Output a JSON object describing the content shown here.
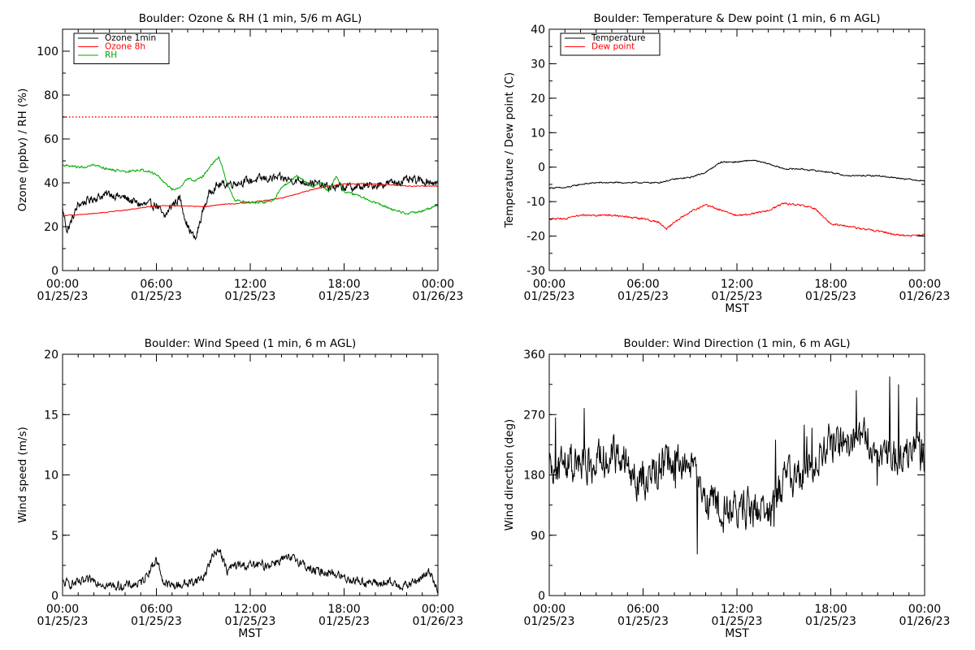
{
  "chart_data": [
    {
      "type": "line",
      "title": "Boulder: Ozone & RH (1 min, 5/6 m AGL)",
      "ylabel": "Ozone (ppbv) / RH (%)",
      "xlabel": "",
      "xlim": [
        "01/25/23 00:00",
        "01/26/23 00:00"
      ],
      "ylim": [
        0,
        110
      ],
      "yticks": [
        0,
        20,
        40,
        60,
        80,
        100
      ],
      "xticks": [
        {
          "time": "00:00",
          "date": "01/25/23"
        },
        {
          "time": "06:00",
          "date": "01/25/23"
        },
        {
          "time": "12:00",
          "date": "01/25/23"
        },
        {
          "time": "18:00",
          "date": "01/25/23"
        },
        {
          "time": "00:00",
          "date": "01/26/23"
        }
      ],
      "reference_line": {
        "y": 70,
        "color": "#ff0000",
        "style": "dotted"
      },
      "legend": {
        "position": "top-left",
        "entries": [
          "Ozone 1min",
          "Ozone 8h",
          "RH"
        ]
      },
      "series": [
        {
          "name": "Ozone 1min",
          "color": "#000000",
          "noise": 3,
          "hours": [
            0,
            0.3,
            1,
            2,
            3,
            4,
            5,
            6,
            6.5,
            7,
            7.5,
            8,
            8.5,
            9,
            9.5,
            10,
            11,
            12,
            13,
            14,
            15,
            16,
            17,
            18,
            19,
            20,
            21,
            22,
            23,
            24
          ],
          "values": [
            28,
            18,
            30,
            33,
            35,
            33,
            30,
            30,
            24,
            30,
            33,
            20,
            14,
            28,
            37,
            39,
            40,
            41,
            42,
            42,
            41,
            40,
            38,
            38,
            38,
            39,
            40,
            41,
            41,
            40
          ]
        },
        {
          "name": "Ozone 8h",
          "color": "#ff0000",
          "noise": 0.3,
          "hours": [
            0,
            2,
            4,
            6,
            8,
            9,
            10,
            12,
            14,
            16,
            17,
            18,
            20,
            22,
            24
          ],
          "values": [
            25,
            26,
            27.5,
            29.5,
            29.5,
            29,
            30,
            31,
            33,
            37,
            38.5,
            39.5,
            39.5,
            38.5,
            38.5
          ]
        },
        {
          "name": "RH",
          "color": "#00aa00",
          "noise": 0.8,
          "hours": [
            0,
            1,
            2,
            3,
            4,
            5,
            6,
            6.5,
            7,
            7.5,
            8,
            8.5,
            9,
            9.5,
            10,
            10.5,
            11,
            12,
            13,
            13.5,
            14,
            15,
            16,
            16.5,
            17,
            17.5,
            18,
            19,
            20,
            21,
            22,
            23,
            24
          ],
          "values": [
            48,
            47,
            48,
            46,
            45,
            46,
            44,
            40,
            37,
            38,
            42,
            41,
            43,
            48,
            52,
            40,
            32,
            31,
            31,
            32,
            38,
            43,
            38,
            40,
            36,
            43,
            36,
            34,
            31,
            28,
            26,
            27,
            30
          ]
        }
      ]
    },
    {
      "type": "line",
      "title": "Boulder: Temperature & Dew point (1 min, 6 m AGL)",
      "ylabel": "Temperature / Dew point (C)",
      "xlabel": "MST",
      "xlim": [
        "01/25/23 00:00",
        "01/26/23 00:00"
      ],
      "ylim": [
        -30,
        40
      ],
      "yticks": [
        -30,
        -20,
        -10,
        0,
        10,
        20,
        30,
        40
      ],
      "xticks": [
        {
          "time": "00:00",
          "date": "01/25/23"
        },
        {
          "time": "06:00",
          "date": "01/25/23"
        },
        {
          "time": "12:00",
          "date": "01/25/23"
        },
        {
          "time": "18:00",
          "date": "01/25/23"
        },
        {
          "time": "00:00",
          "date": "01/26/23"
        }
      ],
      "legend": {
        "position": "top-left",
        "entries": [
          "Temperature",
          "Dew point"
        ]
      },
      "series": [
        {
          "name": "Temperature",
          "color": "#000000",
          "noise": 0.3,
          "hours": [
            0,
            1,
            2,
            3,
            4,
            5,
            6,
            7,
            8,
            9,
            10,
            11,
            12,
            13,
            14,
            15,
            16,
            17,
            18,
            19,
            20,
            21,
            22,
            23,
            24
          ],
          "values": [
            -6,
            -6,
            -5,
            -4.5,
            -4.5,
            -4.5,
            -4.5,
            -4.5,
            -3.5,
            -3,
            -1.5,
            1.5,
            1.5,
            2,
            1,
            -0.5,
            -0.5,
            -1,
            -1.5,
            -2.5,
            -2.5,
            -2.5,
            -3,
            -3.5,
            -4
          ]
        },
        {
          "name": "Dew point",
          "color": "#ff0000",
          "noise": 0.4,
          "hours": [
            0,
            1,
            2,
            3,
            4,
            5,
            6,
            7,
            7.5,
            8,
            9,
            10,
            11,
            12,
            13,
            14,
            15,
            16,
            17,
            18,
            19,
            20,
            21,
            22,
            23,
            24
          ],
          "values": [
            -15,
            -15,
            -14,
            -14,
            -14,
            -14.5,
            -15,
            -16,
            -18,
            -16,
            -13,
            -11,
            -12.5,
            -14,
            -13.5,
            -12.5,
            -10.5,
            -11,
            -12,
            -16.5,
            -17,
            -18,
            -18.5,
            -19.5,
            -20,
            -19.5
          ]
        }
      ]
    },
    {
      "type": "line",
      "title": "Boulder: Wind Speed (1 min, 6 m AGL)",
      "ylabel": "Wind speed (m/s)",
      "xlabel": "MST",
      "xlim": [
        "01/25/23 00:00",
        "01/26/23 00:00"
      ],
      "ylim": [
        0,
        20
      ],
      "yticks": [
        0,
        5,
        10,
        15,
        20
      ],
      "xticks": [
        {
          "time": "00:00",
          "date": "01/25/23"
        },
        {
          "time": "06:00",
          "date": "01/25/23"
        },
        {
          "time": "12:00",
          "date": "01/25/23"
        },
        {
          "time": "18:00",
          "date": "01/25/23"
        },
        {
          "time": "00:00",
          "date": "01/26/23"
        }
      ],
      "series": [
        {
          "name": "",
          "color": "#000000",
          "noise": 0.6,
          "floor": 0,
          "hours": [
            0,
            1,
            2,
            3,
            4,
            5,
            5.5,
            6,
            6.5,
            7,
            8,
            9,
            9.5,
            10,
            10.5,
            11,
            12,
            13,
            14,
            15,
            16,
            17,
            18,
            19,
            20,
            21,
            22,
            23,
            23.5,
            24
          ],
          "values": [
            1,
            1,
            1.3,
            0.8,
            0.8,
            1,
            2,
            3,
            1,
            0.8,
            1,
            1.5,
            3,
            4,
            2,
            2.5,
            2.5,
            2.5,
            3,
            3,
            2,
            2,
            1.5,
            1.2,
            1,
            1,
            0.8,
            1.5,
            2,
            0.5
          ]
        }
      ]
    },
    {
      "type": "line",
      "title": "Boulder: Wind Direction (1 min, 6 m AGL)",
      "ylabel": "Wind direction (deg)",
      "xlabel": "MST",
      "xlim": [
        "01/25/23 00:00",
        "01/26/23 00:00"
      ],
      "ylim": [
        0,
        360
      ],
      "yticks": [
        0,
        90,
        180,
        270,
        360
      ],
      "xticks": [
        {
          "time": "00:00",
          "date": "01/25/23"
        },
        {
          "time": "06:00",
          "date": "01/25/23"
        },
        {
          "time": "12:00",
          "date": "01/25/23"
        },
        {
          "time": "18:00",
          "date": "01/25/23"
        },
        {
          "time": "00:00",
          "date": "01/26/23"
        }
      ],
      "series": [
        {
          "name": "",
          "color": "#000000",
          "noise": 45,
          "floor": 0,
          "ceil": 360,
          "hours": [
            0,
            1,
            2,
            3,
            4,
            5,
            6,
            7,
            8,
            9,
            10,
            11,
            12,
            13,
            14,
            15,
            16,
            17,
            18,
            19,
            20,
            21,
            22,
            23,
            24
          ],
          "values": [
            180,
            200,
            190,
            200,
            210,
            190,
            170,
            190,
            200,
            190,
            150,
            120,
            130,
            130,
            120,
            170,
            180,
            190,
            230,
            220,
            240,
            220,
            200,
            220,
            210
          ]
        }
      ]
    }
  ]
}
